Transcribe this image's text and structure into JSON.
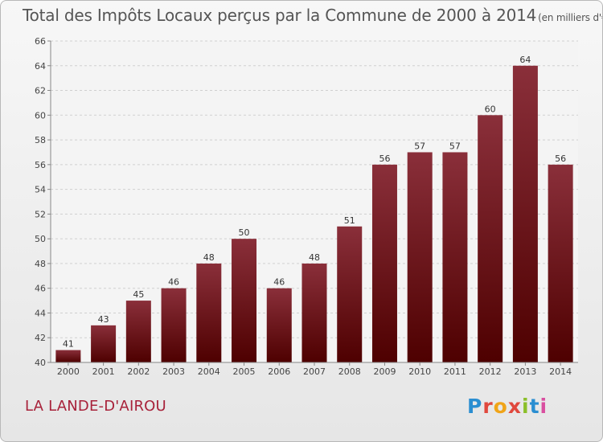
{
  "title": "Total des Impôts Locaux perçus par la Commune de 2000 à 2014",
  "unit": "(en milliers d'€)",
  "commune": "LA LANDE-D'AIROU",
  "logo": "Proxiti",
  "colors": {
    "bar_top": "#8a2f3a",
    "bar_bottom": "#4e0000",
    "title": "#555555",
    "commune": "#a8223a"
  },
  "chart_data": {
    "type": "bar",
    "title": "Total des Impôts Locaux perçus par la Commune de 2000 à 2014",
    "ylabel": "en milliers d'€",
    "xlabel": "",
    "categories": [
      "2000",
      "2001",
      "2002",
      "2003",
      "2004",
      "2005",
      "2006",
      "2007",
      "2008",
      "2009",
      "2010",
      "2011",
      "2012",
      "2013",
      "2014"
    ],
    "values": [
      41,
      43,
      45,
      46,
      48,
      50,
      46,
      48,
      51,
      56,
      57,
      57,
      60,
      64,
      56
    ],
    "ylim": [
      40,
      66
    ],
    "yticks": [
      40,
      42,
      44,
      46,
      48,
      50,
      52,
      54,
      56,
      58,
      60,
      62,
      64,
      66
    ],
    "grid": true
  }
}
